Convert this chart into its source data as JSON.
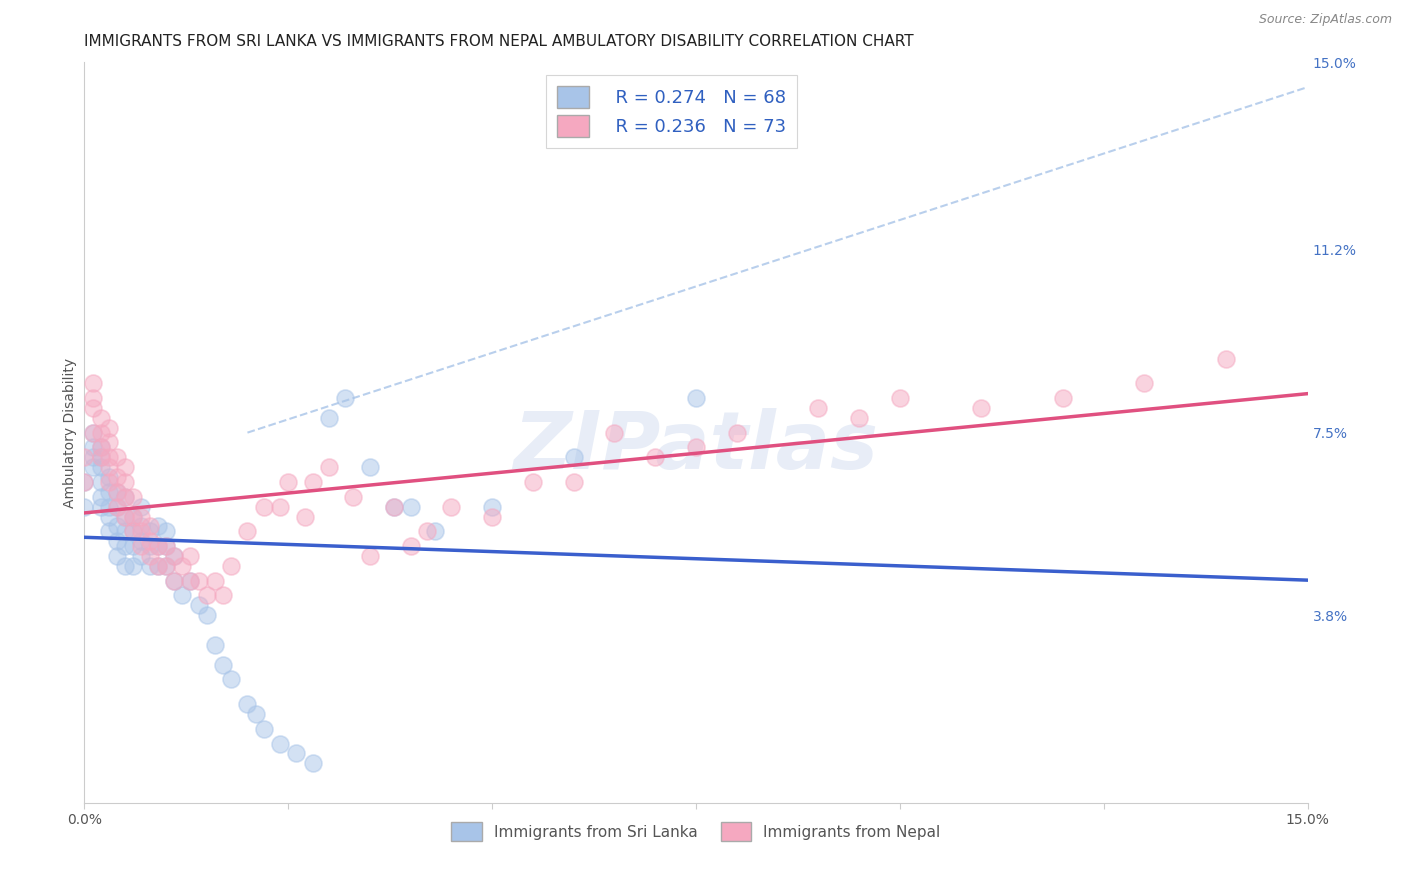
{
  "title": "IMMIGRANTS FROM SRI LANKA VS IMMIGRANTS FROM NEPAL AMBULATORY DISABILITY CORRELATION CHART",
  "source": "Source: ZipAtlas.com",
  "ylabel": "Ambulatory Disability",
  "xlim": [
    0.0,
    0.15
  ],
  "ylim": [
    0.0,
    0.15
  ],
  "ytick_labels_right": [
    "15.0%",
    "11.2%",
    "7.5%",
    "3.8%"
  ],
  "ytick_positions_right": [
    0.15,
    0.112,
    0.075,
    0.038
  ],
  "xtick_positions": [
    0.0,
    0.025,
    0.05,
    0.075,
    0.1,
    0.125,
    0.15
  ],
  "sri_lanka_color": "#a8c4e8",
  "nepal_color": "#f5a8c0",
  "sri_lanka_R": 0.274,
  "sri_lanka_N": 68,
  "nepal_R": 0.236,
  "nepal_N": 73,
  "line_sri_lanka_color": "#3a5fcd",
  "line_nepal_color": "#e05080",
  "dashed_line_color": "#a8c4e8",
  "watermark": "ZIPatlas",
  "sri_lanka_x": [
    0.0,
    0.0,
    0.001,
    0.001,
    0.001,
    0.001,
    0.002,
    0.002,
    0.002,
    0.002,
    0.002,
    0.002,
    0.003,
    0.003,
    0.003,
    0.003,
    0.003,
    0.004,
    0.004,
    0.004,
    0.004,
    0.004,
    0.005,
    0.005,
    0.005,
    0.005,
    0.005,
    0.006,
    0.006,
    0.006,
    0.006,
    0.007,
    0.007,
    0.007,
    0.007,
    0.008,
    0.008,
    0.008,
    0.009,
    0.009,
    0.009,
    0.01,
    0.01,
    0.01,
    0.011,
    0.011,
    0.012,
    0.013,
    0.014,
    0.015,
    0.016,
    0.017,
    0.018,
    0.02,
    0.021,
    0.022,
    0.024,
    0.026,
    0.028,
    0.03,
    0.032,
    0.035,
    0.038,
    0.04,
    0.043,
    0.05,
    0.06,
    0.075
  ],
  "sri_lanka_y": [
    0.06,
    0.065,
    0.07,
    0.068,
    0.072,
    0.075,
    0.06,
    0.062,
    0.065,
    0.068,
    0.07,
    0.072,
    0.055,
    0.058,
    0.06,
    0.063,
    0.066,
    0.05,
    0.053,
    0.056,
    0.06,
    0.063,
    0.048,
    0.052,
    0.055,
    0.058,
    0.062,
    0.048,
    0.052,
    0.055,
    0.058,
    0.05,
    0.053,
    0.056,
    0.06,
    0.048,
    0.052,
    0.055,
    0.048,
    0.052,
    0.056,
    0.048,
    0.052,
    0.055,
    0.045,
    0.05,
    0.042,
    0.045,
    0.04,
    0.038,
    0.032,
    0.028,
    0.025,
    0.02,
    0.018,
    0.015,
    0.012,
    0.01,
    0.008,
    0.078,
    0.082,
    0.068,
    0.06,
    0.06,
    0.055,
    0.06,
    0.07,
    0.082
  ],
  "nepal_x": [
    0.0,
    0.0,
    0.001,
    0.001,
    0.001,
    0.001,
    0.002,
    0.002,
    0.002,
    0.002,
    0.003,
    0.003,
    0.003,
    0.003,
    0.003,
    0.004,
    0.004,
    0.004,
    0.004,
    0.005,
    0.005,
    0.005,
    0.005,
    0.006,
    0.006,
    0.006,
    0.007,
    0.007,
    0.007,
    0.008,
    0.008,
    0.008,
    0.009,
    0.009,
    0.01,
    0.01,
    0.011,
    0.011,
    0.012,
    0.013,
    0.013,
    0.014,
    0.015,
    0.016,
    0.017,
    0.018,
    0.02,
    0.022,
    0.024,
    0.025,
    0.027,
    0.028,
    0.03,
    0.033,
    0.035,
    0.038,
    0.04,
    0.042,
    0.045,
    0.05,
    0.055,
    0.06,
    0.065,
    0.07,
    0.075,
    0.08,
    0.09,
    0.095,
    0.1,
    0.11,
    0.12,
    0.13,
    0.14
  ],
  "nepal_y": [
    0.065,
    0.07,
    0.075,
    0.08,
    0.082,
    0.085,
    0.07,
    0.072,
    0.075,
    0.078,
    0.065,
    0.068,
    0.07,
    0.073,
    0.076,
    0.06,
    0.063,
    0.066,
    0.07,
    0.058,
    0.062,
    0.065,
    0.068,
    0.055,
    0.058,
    0.062,
    0.052,
    0.055,
    0.058,
    0.05,
    0.053,
    0.056,
    0.048,
    0.052,
    0.048,
    0.052,
    0.045,
    0.05,
    0.048,
    0.045,
    0.05,
    0.045,
    0.042,
    0.045,
    0.042,
    0.048,
    0.055,
    0.06,
    0.06,
    0.065,
    0.058,
    0.065,
    0.068,
    0.062,
    0.05,
    0.06,
    0.052,
    0.055,
    0.06,
    0.058,
    0.065,
    0.065,
    0.075,
    0.07,
    0.072,
    0.075,
    0.08,
    0.078,
    0.082,
    0.08,
    0.082,
    0.085,
    0.09
  ],
  "background_color": "#ffffff",
  "grid_color": "#d8d8d8",
  "title_fontsize": 11,
  "axis_label_fontsize": 10,
  "tick_fontsize": 10,
  "legend_fontsize": 13
}
